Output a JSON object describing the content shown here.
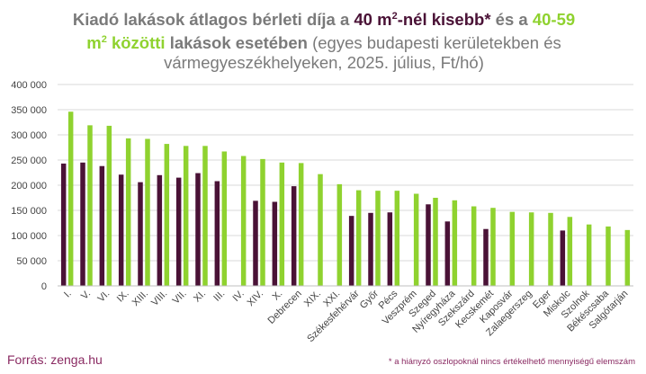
{
  "title": {
    "p1": "Kiadó lakások átlagos bérleti díja a ",
    "p2": "40 m",
    "p2sup": "2",
    "p3": "-nél kisebb*",
    "p4": " és a ",
    "p5": "40-59",
    "p6": "m",
    "p6sup": "2",
    "p7": " közötti",
    "p8": " lakások esetében",
    "p9": " (egyes budapesti kerületekben és vármegyeszékhelyeken,  2025. július, Ft/hó)"
  },
  "source": "Forrás: zenga.hu",
  "footnote": "* a hiányzó oszlopoknál nincs értékelhető mennyiségű elemszám",
  "colors": {
    "small": "#4a1236",
    "medium": "#8fd22f",
    "grid": "#d9d9d9",
    "text": "#444444"
  },
  "chart_data": {
    "type": "bar",
    "categories": [
      "I.",
      "V.",
      "VI.",
      "IX.",
      "XIII.",
      "VIII.",
      "VII.",
      "XI.",
      "III.",
      "IV.",
      "XIV.",
      "X.",
      "Debrecen",
      "XIX.",
      "XXI.",
      "Székesfehérvár",
      "Győr",
      "Pécs",
      "Veszprém",
      "Szeged",
      "Nyíregyháza",
      "Szekszárd",
      "Kecskemét",
      "Kaposvár",
      "Zalaegerszeg",
      "Eger",
      "Miskolc",
      "Szolnok",
      "Békéscsaba",
      "Salgótarján"
    ],
    "series": [
      {
        "values": [
          243000,
          245000,
          238000,
          221000,
          206000,
          220000,
          215000,
          224000,
          208000,
          null,
          169000,
          167000,
          198000,
          null,
          null,
          139000,
          145000,
          146000,
          null,
          162000,
          128000,
          null,
          113000,
          null,
          null,
          null,
          110000,
          null,
          null,
          null
        ]
      },
      {
        "values": [
          346000,
          319000,
          318000,
          293000,
          292000,
          282000,
          278000,
          278000,
          267000,
          258000,
          252000,
          245000,
          244000,
          222000,
          202000,
          190000,
          189000,
          189000,
          183000,
          175000,
          170000,
          158000,
          155000,
          147000,
          146000,
          145000,
          137000,
          122000,
          118000,
          111000
        ]
      }
    ],
    "yticks": [
      "0",
      "50 000",
      "100 000",
      "150 000",
      "200 000",
      "250 000",
      "300 000",
      "350 000",
      "400 000"
    ],
    "ylim": [
      0,
      400000
    ],
    "grid": true
  }
}
